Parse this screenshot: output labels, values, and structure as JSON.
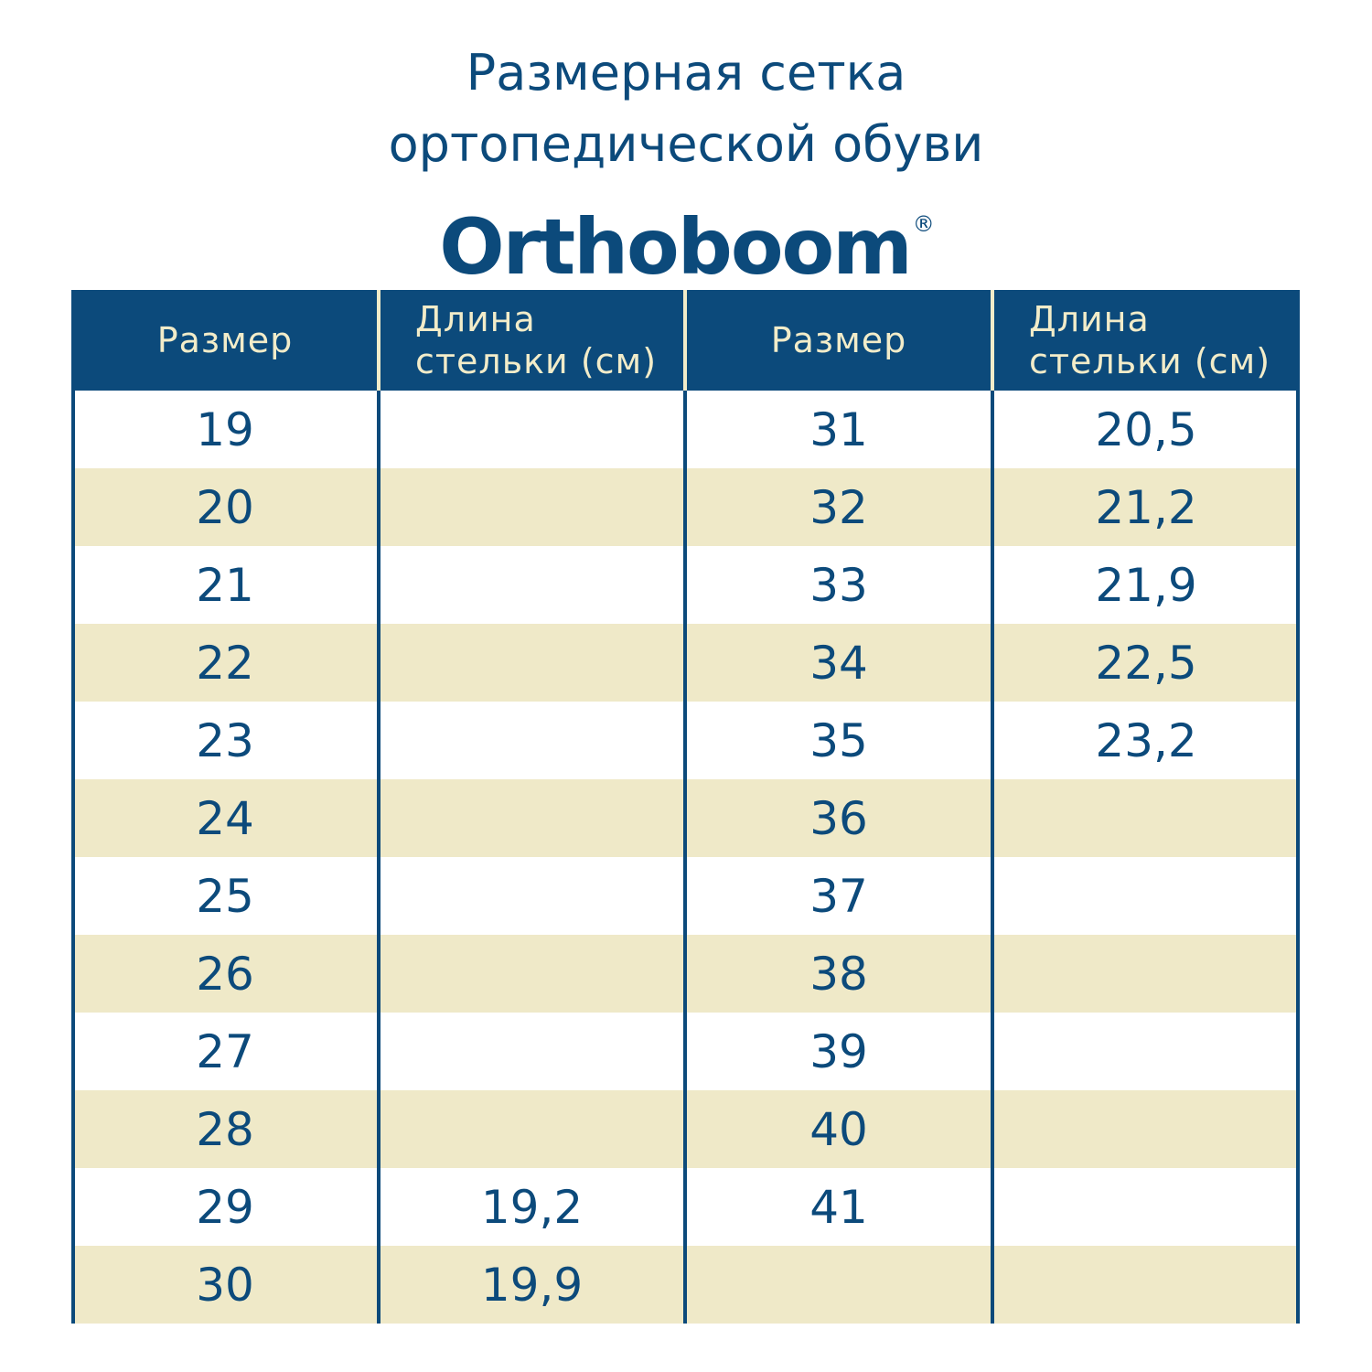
{
  "header": {
    "title_lines": [
      "Размерная сетка",
      "ортопедической обуви"
    ],
    "brand": "Orthoboom",
    "brand_mark": "®"
  },
  "table": {
    "columns": [
      "Размер",
      "Длина стельки (см)",
      "Размер",
      "Длина стельки (см)"
    ],
    "rows": [
      [
        "19",
        null,
        "31",
        "20,5"
      ],
      [
        "20",
        null,
        "32",
        "21,2"
      ],
      [
        "21",
        null,
        "33",
        "21,9"
      ],
      [
        "22",
        null,
        "34",
        "22,5"
      ],
      [
        "23",
        null,
        "35",
        "23,2"
      ],
      [
        "24",
        null,
        "36",
        null
      ],
      [
        "25",
        null,
        "37",
        null
      ],
      [
        "26",
        null,
        "38",
        null
      ],
      [
        "27",
        null,
        "39",
        null
      ],
      [
        "28",
        null,
        "40",
        null
      ],
      [
        "29",
        "19,2",
        "41",
        null
      ],
      [
        "30",
        "19,9",
        null,
        null
      ]
    ]
  }
}
